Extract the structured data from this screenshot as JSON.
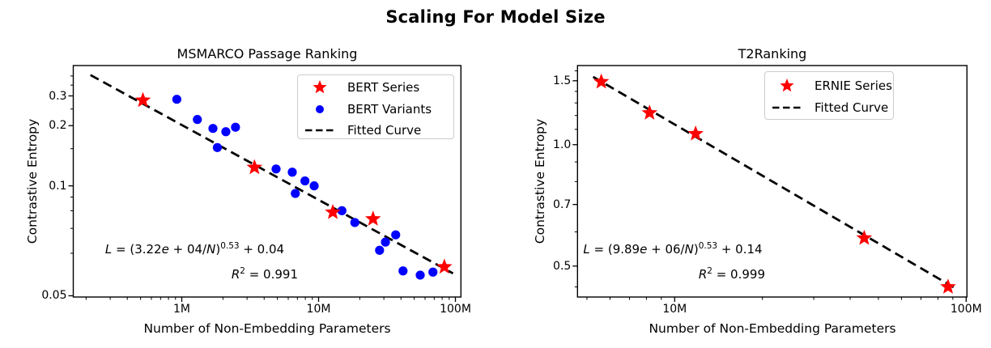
{
  "suptitle": "Scaling For Model Size",
  "chart_data": [
    {
      "type": "scatter",
      "title": "MSMARCO Passage Ranking",
      "xlabel": "Number of Non-Embedding Parameters",
      "ylabel": "Contrastive Entropy",
      "x_scale": "log",
      "y_scale": "log-shifted",
      "y_transform_offset": 0.04,
      "x_range": [
        161000,
        110000000
      ],
      "y_range": [
        0.0498,
        0.468
      ],
      "x_ticks": [
        {
          "value": 1000000,
          "label": "1M"
        },
        {
          "value": 10000000,
          "label": "10M"
        },
        {
          "value": 100000000,
          "label": "100M"
        }
      ],
      "y_ticks": [
        {
          "value": 0.3,
          "label": "0.3"
        },
        {
          "value": 0.2,
          "label": "0.2"
        },
        {
          "value": 0.1,
          "label": "0.1"
        },
        {
          "value": 0.05,
          "label": "0.05"
        }
      ],
      "y_minor_ticks": [
        0.4,
        0.35,
        0.25,
        0.15,
        0.09,
        0.08,
        0.07,
        0.06
      ],
      "legend_position": "upper right",
      "grid": false,
      "series": [
        {
          "name": "BERT Series",
          "marker": "star",
          "color": "#ff0000",
          "points": [
            [
              520000,
              0.282
            ],
            [
              3400000,
              0.121
            ],
            [
              12700000,
              0.079
            ],
            [
              25000000,
              0.075
            ],
            [
              83000000,
              0.056
            ]
          ]
        },
        {
          "name": "BERT Variants",
          "marker": "circle",
          "color": "#0000ff",
          "points": [
            [
              920000,
              0.286
            ],
            [
              1300000,
              0.217
            ],
            [
              1690000,
              0.193
            ],
            [
              2100000,
              0.185
            ],
            [
              2470000,
              0.196
            ],
            [
              1820000,
              0.152
            ],
            [
              4890000,
              0.119
            ],
            [
              6420000,
              0.115
            ],
            [
              7950000,
              0.105
            ],
            [
              9280000,
              0.1
            ],
            [
              6760000,
              0.093
            ],
            [
              14800000,
              0.08
            ],
            [
              18400000,
              0.073
            ],
            [
              27900000,
              0.061
            ],
            [
              30800000,
              0.064
            ],
            [
              36600000,
              0.067
            ],
            [
              41400000,
              0.055
            ],
            [
              55300000,
              0.054
            ],
            [
              68500000,
              0.0547
            ]
          ]
        },
        {
          "name": "Fitted Curve",
          "marker": "dash-line",
          "color": "#000000",
          "fit": {
            "A": 32200,
            "alpha": 0.53,
            "c": 0.04
          },
          "span": [
            215000,
            96000000
          ]
        }
      ],
      "annotation": {
        "line1": [
          {
            "t": "L",
            "i": true
          },
          {
            "t": " = (3.22"
          },
          {
            "t": "e",
            "i": true
          },
          {
            "t": " + 04/"
          },
          {
            "t": "N",
            "i": true
          },
          {
            "t": ")"
          },
          {
            "sup": "0.53"
          },
          {
            "t": " + 0.04"
          }
        ],
        "line2": [
          {
            "t": "R",
            "i": true
          },
          {
            "sup": "2"
          },
          {
            "t": " = 0.991"
          }
        ]
      }
    },
    {
      "type": "scatter",
      "title": "T2Ranking",
      "xlabel": "Number of Non-Embedding Parameters",
      "ylabel": "Contrastive Entropy",
      "x_scale": "log",
      "y_scale": "log-shifted",
      "y_transform_offset": 0.14,
      "x_range": [
        4640000,
        101500000
      ],
      "y_range": [
        0.428,
        1.65
      ],
      "x_ticks": [
        {
          "value": 10000000,
          "label": "10M"
        },
        {
          "value": 100000000,
          "label": "100M"
        }
      ],
      "y_ticks": [
        {
          "value": 1.5,
          "label": "1.5"
        },
        {
          "value": 1.0,
          "label": "1.0"
        },
        {
          "value": 0.7,
          "label": "0.7"
        },
        {
          "value": 0.5,
          "label": "0.5"
        }
      ],
      "y_minor_ticks": [
        1.6,
        1.4,
        1.3,
        1.2,
        1.1,
        0.9,
        0.8,
        0.6,
        0.45
      ],
      "legend_position": "upper right",
      "grid": false,
      "series": [
        {
          "name": "ERNIE Series",
          "marker": "star",
          "color": "#ff0000",
          "points": [
            [
              5600000,
              1.49
            ],
            [
              8200000,
              1.22
            ],
            [
              11800000,
              1.07
            ],
            [
              44700000,
              0.58
            ],
            [
              86700000,
              0.45
            ]
          ]
        },
        {
          "name": "Fitted Curve",
          "marker": "dash-line",
          "color": "#000000",
          "fit": {
            "A": 9890000,
            "alpha": 0.53,
            "c": 0.14
          },
          "span": [
            5250000,
            93000000
          ]
        }
      ],
      "annotation": {
        "line1": [
          {
            "t": "L",
            "i": true
          },
          {
            "t": " = (9.89"
          },
          {
            "t": "e",
            "i": true
          },
          {
            "t": " + 06/"
          },
          {
            "t": "N",
            "i": true
          },
          {
            "t": ")"
          },
          {
            "sup": "0.53"
          },
          {
            "t": " + 0.14"
          }
        ],
        "line2": [
          {
            "t": "R",
            "i": true
          },
          {
            "sup": "2"
          },
          {
            "t": " = 0.999"
          }
        ]
      }
    }
  ]
}
